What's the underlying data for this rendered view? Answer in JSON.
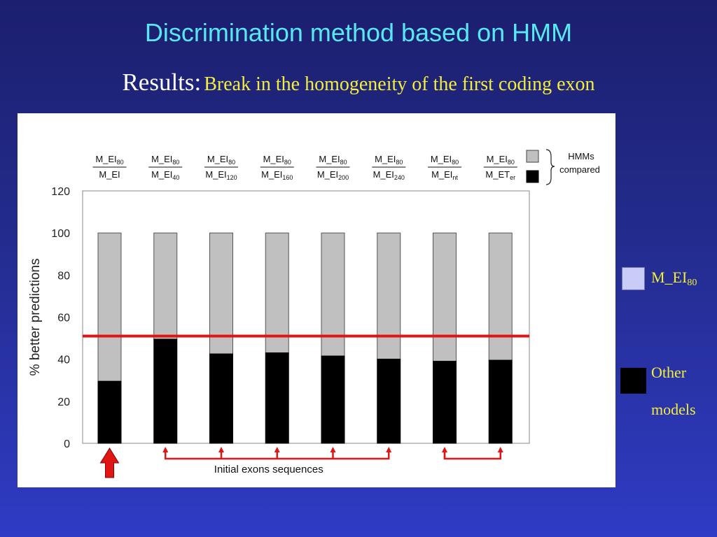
{
  "slide": {
    "title": "Discrimination method based on HMM",
    "subtitle_lead": "Results:",
    "subtitle_rest": "Break in the homogeneity of the first coding exon"
  },
  "side_legend": {
    "m80_label": "M_EI",
    "m80_sub": "80",
    "other_line1": "Other",
    "other_line2": "models",
    "m80_color": "#c9ccf6",
    "other_color": "#000000"
  },
  "chart_data": {
    "type": "bar",
    "stacked": true,
    "ylabel": "% better predictions",
    "ylim": [
      0,
      120
    ],
    "yticks": [
      0,
      20,
      40,
      60,
      80,
      100,
      120
    ],
    "reference_line": 51,
    "reference_color": "#e01616",
    "categories": [
      {
        "top": "M_EI",
        "top_sub": "80",
        "bottom": "M_EI",
        "bottom_sub": ""
      },
      {
        "top": "M_EI",
        "top_sub": "80",
        "bottom": "M_EI",
        "bottom_sub": "40"
      },
      {
        "top": "M_EI",
        "top_sub": "80",
        "bottom": "M_EI",
        "bottom_sub": "120"
      },
      {
        "top": "M_EI",
        "top_sub": "80",
        "bottom": "M_EI",
        "bottom_sub": "160"
      },
      {
        "top": "M_EI",
        "top_sub": "80",
        "bottom": "M_EI",
        "bottom_sub": "200"
      },
      {
        "top": "M_EI",
        "top_sub": "80",
        "bottom": "M_EI",
        "bottom_sub": "240"
      },
      {
        "top": "M_EI",
        "top_sub": "80",
        "bottom": "M_EI",
        "bottom_sub": "nt"
      },
      {
        "top": "M_EI",
        "top_sub": "80",
        "bottom": "M_ET",
        "bottom_sub": "er"
      }
    ],
    "series": [
      {
        "key": "other",
        "values": [
          29.5,
          49.5,
          42.5,
          43,
          41.5,
          40,
          39,
          39.5
        ],
        "color": "#000000"
      },
      {
        "key": "m80",
        "values": [
          70.5,
          50.5,
          57.5,
          57,
          58.5,
          60,
          61,
          60.5
        ],
        "color": "#c0c0c0"
      }
    ],
    "legend": {
      "hmms_line1": "HMMs",
      "hmms_line2": "compared",
      "position": "top-right"
    },
    "annotation": "Initial exons sequences",
    "brackets": [
      [
        1,
        5
      ],
      [
        6,
        7
      ]
    ],
    "highlight_index": 0
  }
}
